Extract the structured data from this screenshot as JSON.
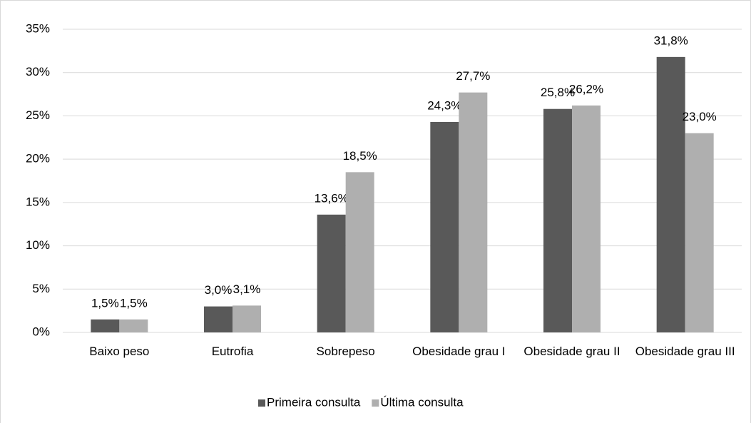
{
  "chart_data": {
    "type": "bar",
    "categories": [
      "Baixo peso",
      "Eutrofia",
      "Sobrepeso",
      "Obesidade grau I",
      "Obesidade grau II",
      "Obesidade grau III"
    ],
    "series": [
      {
        "name": "Primeira consulta",
        "color": "#595959",
        "values": [
          1.5,
          3.0,
          13.6,
          24.3,
          25.8,
          31.8
        ],
        "value_labels": [
          "1,5%",
          "3,0%",
          "13,6%",
          "24,3%",
          "25,8%",
          "31,8%"
        ]
      },
      {
        "name": "Última consulta",
        "color": "#afafaf",
        "values": [
          1.5,
          3.1,
          18.5,
          27.7,
          26.2,
          23.0
        ],
        "value_labels": [
          "1,5%",
          "3,1%",
          "18,5%",
          "27,7%",
          "26,2%",
          "23,0%"
        ]
      }
    ],
    "ylim": [
      0,
      35
    ],
    "yticks": [
      {
        "value": 0,
        "label": "0%"
      },
      {
        "value": 5,
        "label": "5%"
      },
      {
        "value": 10,
        "label": "10%"
      },
      {
        "value": 15,
        "label": "15%"
      },
      {
        "value": 20,
        "label": "20%"
      },
      {
        "value": 25,
        "label": "25%"
      },
      {
        "value": 30,
        "label": "30%"
      },
      {
        "value": 35,
        "label": "35%"
      }
    ],
    "grid": true,
    "legend": "bottom"
  }
}
